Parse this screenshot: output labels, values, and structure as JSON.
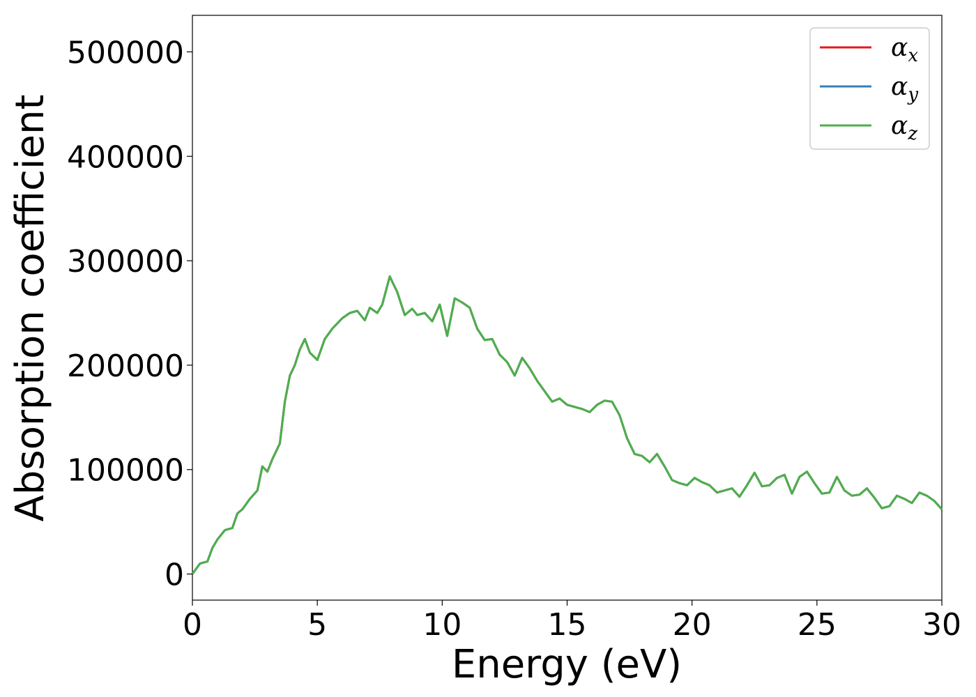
{
  "chart_data": {
    "type": "line",
    "title": "",
    "xlabel": "Energy (eV)",
    "ylabel": "Absorption coefficient",
    "xlim": [
      0,
      30
    ],
    "ylim": [
      -25000,
      535000
    ],
    "xticks": [
      0,
      5,
      10,
      15,
      20,
      25,
      30
    ],
    "xtick_labels": [
      "0",
      "5",
      "10",
      "15",
      "20",
      "25",
      "30"
    ],
    "yticks": [
      0,
      100000,
      200000,
      300000,
      400000,
      500000
    ],
    "ytick_labels": [
      "0",
      "100000",
      "200000",
      "300000",
      "400000",
      "500000"
    ],
    "grid": false,
    "legend_position": "top-right",
    "x": [
      0,
      0.3,
      0.6,
      0.8,
      1.0,
      1.3,
      1.6,
      1.8,
      2.0,
      2.3,
      2.6,
      2.8,
      3.0,
      3.2,
      3.5,
      3.7,
      3.9,
      4.1,
      4.3,
      4.5,
      4.7,
      5.0,
      5.3,
      5.6,
      6.0,
      6.3,
      6.6,
      6.9,
      7.1,
      7.4,
      7.6,
      7.9,
      8.2,
      8.5,
      8.8,
      9.0,
      9.3,
      9.6,
      9.9,
      10.2,
      10.5,
      10.8,
      11.1,
      11.4,
      11.7,
      12.0,
      12.3,
      12.6,
      12.9,
      13.2,
      13.5,
      13.8,
      14.1,
      14.4,
      14.7,
      15.0,
      15.3,
      15.6,
      15.9,
      16.2,
      16.5,
      16.8,
      17.1,
      17.4,
      17.7,
      18.0,
      18.3,
      18.6,
      18.9,
      19.2,
      19.5,
      19.8,
      20.1,
      20.4,
      20.7,
      21.0,
      21.3,
      21.6,
      21.9,
      22.2,
      22.5,
      22.8,
      23.1,
      23.4,
      23.7,
      24.0,
      24.3,
      24.6,
      24.9,
      25.2,
      25.5,
      25.8,
      26.1,
      26.4,
      26.7,
      27.0,
      27.3,
      27.6,
      27.9,
      28.2,
      28.5,
      28.8,
      29.1,
      29.4,
      29.7,
      30.0
    ],
    "series": [
      {
        "name": "α_x",
        "color": "#e41a1c",
        "values": [
          0,
          10000,
          12000,
          25000,
          33000,
          42000,
          44000,
          58000,
          62000,
          72000,
          80000,
          103000,
          98000,
          110000,
          125000,
          165000,
          190000,
          200000,
          215000,
          225000,
          212000,
          205000,
          225000,
          235000,
          245000,
          250000,
          252000,
          243000,
          255000,
          250000,
          258000,
          285000,
          270000,
          248000,
          254000,
          248000,
          250000,
          242000,
          258000,
          228000,
          264000,
          260000,
          255000,
          235000,
          224000,
          225000,
          210000,
          203000,
          190000,
          207000,
          197000,
          185000,
          175000,
          165000,
          168000,
          162000,
          160000,
          158000,
          155000,
          162000,
          166000,
          165000,
          152000,
          130000,
          115000,
          113000,
          107000,
          115000,
          103000,
          90000,
          87000,
          85000,
          92000,
          88000,
          85000,
          78000,
          80000,
          82000,
          74000,
          85000,
          97000,
          84000,
          85000,
          92000,
          95000,
          77000,
          93000,
          98000,
          87000,
          77000,
          78000,
          93000,
          80000,
          75000,
          76000,
          82000,
          73000,
          63000,
          65000,
          75000,
          72000,
          68000,
          78000,
          75000,
          70000,
          62000
        ]
      },
      {
        "name": "α_y",
        "color": "#377eb8",
        "values": [
          0,
          10000,
          12000,
          25000,
          33000,
          42000,
          44000,
          58000,
          62000,
          72000,
          80000,
          103000,
          98000,
          110000,
          125000,
          165000,
          190000,
          200000,
          215000,
          225000,
          212000,
          205000,
          225000,
          235000,
          245000,
          250000,
          252000,
          243000,
          255000,
          250000,
          258000,
          285000,
          270000,
          248000,
          254000,
          248000,
          250000,
          242000,
          258000,
          228000,
          264000,
          260000,
          255000,
          235000,
          224000,
          225000,
          210000,
          203000,
          190000,
          207000,
          197000,
          185000,
          175000,
          165000,
          168000,
          162000,
          160000,
          158000,
          155000,
          162000,
          166000,
          165000,
          152000,
          130000,
          115000,
          113000,
          107000,
          115000,
          103000,
          90000,
          87000,
          85000,
          92000,
          88000,
          85000,
          78000,
          80000,
          82000,
          74000,
          85000,
          97000,
          84000,
          85000,
          92000,
          95000,
          77000,
          93000,
          98000,
          87000,
          77000,
          78000,
          93000,
          80000,
          75000,
          76000,
          82000,
          73000,
          63000,
          65000,
          75000,
          72000,
          68000,
          78000,
          75000,
          70000,
          62000
        ]
      },
      {
        "name": "α_z",
        "color": "#4daf4a",
        "values": [
          0,
          10000,
          12000,
          25000,
          33000,
          42000,
          44000,
          58000,
          62000,
          72000,
          80000,
          103000,
          98000,
          110000,
          125000,
          165000,
          190000,
          200000,
          215000,
          225000,
          212000,
          205000,
          225000,
          235000,
          245000,
          250000,
          252000,
          243000,
          255000,
          250000,
          258000,
          285000,
          270000,
          248000,
          254000,
          248000,
          250000,
          242000,
          258000,
          228000,
          264000,
          260000,
          255000,
          235000,
          224000,
          225000,
          210000,
          203000,
          190000,
          207000,
          197000,
          185000,
          175000,
          165000,
          168000,
          162000,
          160000,
          158000,
          155000,
          162000,
          166000,
          165000,
          152000,
          130000,
          115000,
          113000,
          107000,
          115000,
          103000,
          90000,
          87000,
          85000,
          92000,
          88000,
          85000,
          78000,
          80000,
          82000,
          74000,
          85000,
          97000,
          84000,
          85000,
          92000,
          95000,
          77000,
          93000,
          98000,
          87000,
          77000,
          78000,
          93000,
          80000,
          75000,
          76000,
          82000,
          73000,
          63000,
          65000,
          75000,
          72000,
          68000,
          78000,
          75000,
          70000,
          62000
        ]
      }
    ],
    "legend": [
      {
        "symbol": "α",
        "subscript": "x"
      },
      {
        "symbol": "α",
        "subscript": "y"
      },
      {
        "symbol": "α",
        "subscript": "z"
      }
    ]
  }
}
